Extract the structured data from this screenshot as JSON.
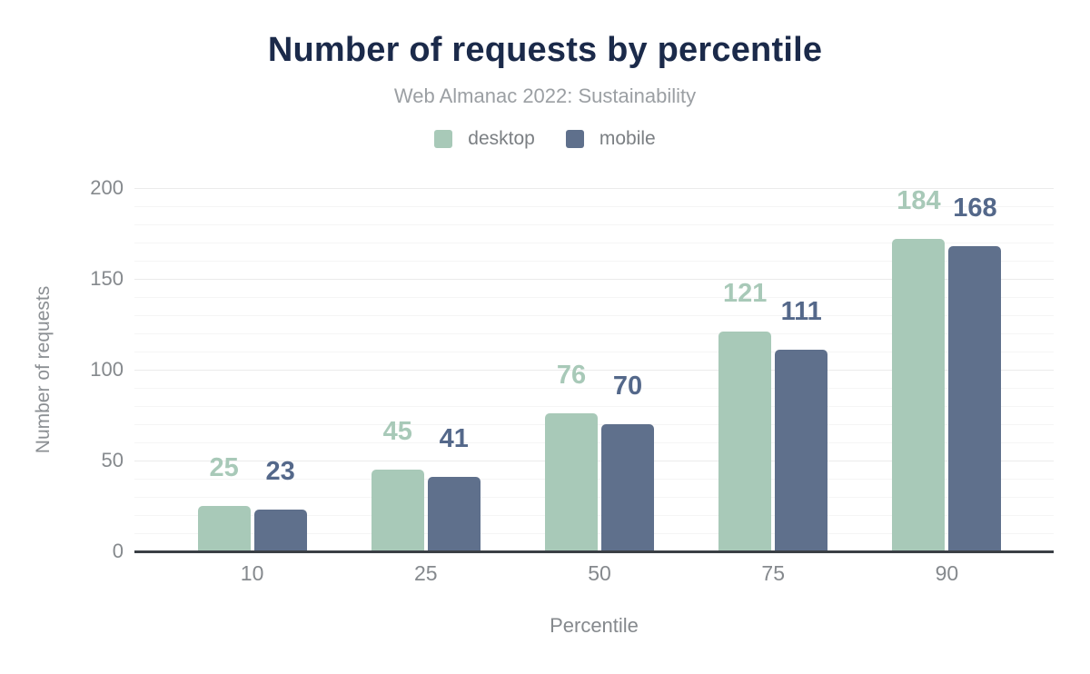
{
  "chart_data": {
    "type": "bar",
    "title": "Number of requests by percentile",
    "subtitle": "Web Almanac 2022: Sustainability",
    "categories": [
      "10",
      "25",
      "50",
      "75",
      "90"
    ],
    "series": [
      {
        "name": "desktop",
        "color": "#a8c9b8",
        "label_color": "#a8c9b8",
        "values": [
          25,
          45,
          76,
          121,
          184
        ]
      },
      {
        "name": "mobile",
        "color": "#5f708c",
        "label_color": "#54688a",
        "values": [
          23,
          41,
          70,
          111,
          168
        ]
      }
    ],
    "xlabel": "Percentile",
    "ylabel": "Number of requests",
    "ylim": [
      0,
      200
    ],
    "yticks": [
      0,
      50,
      100,
      150,
      200
    ],
    "grid": {
      "minor_step": 10,
      "major_step": 50,
      "minor_color": "#f5f5f5",
      "major_color": "#ebebeb"
    },
    "legend_position": "top",
    "data_labels": true,
    "colors": {
      "title": "#1b2a4a",
      "subtitle": "#9b9fa3",
      "legend_text": "#7b7f83",
      "axis_line": "#3a3f45",
      "tick_label": "#85898d",
      "axis_title": "#8b8f93",
      "background": "#ffffff"
    }
  }
}
